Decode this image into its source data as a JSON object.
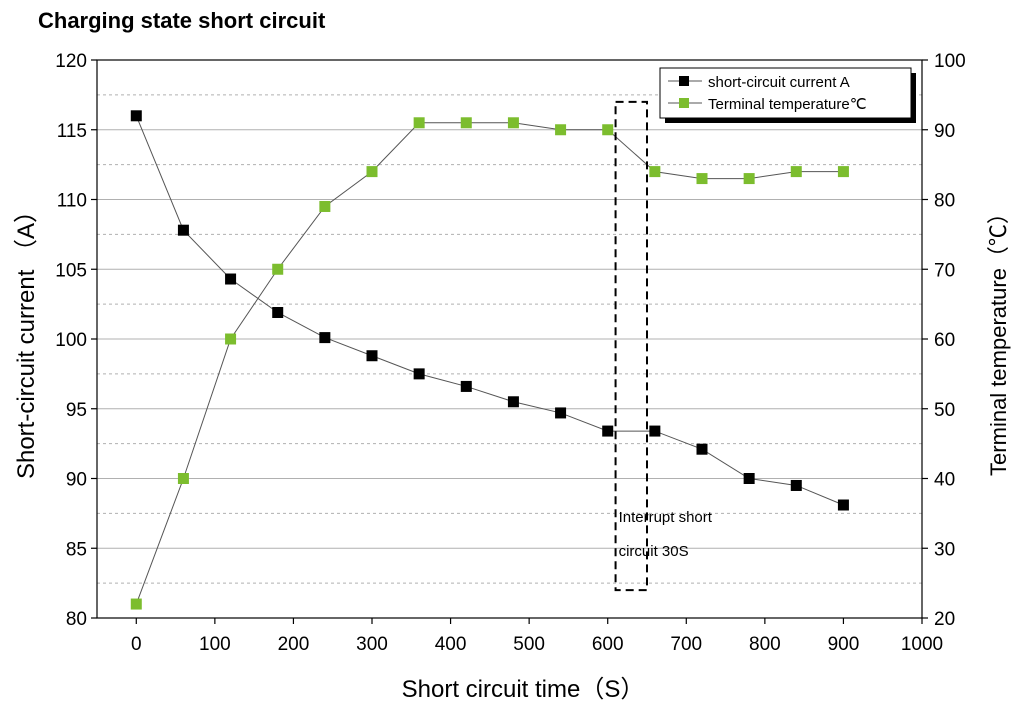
{
  "chart_data": {
    "type": "line",
    "title": "Charging state short circuit",
    "xlabel": "Short circuit time（S）",
    "ylabel_left": "Short-circuit current （A）",
    "ylabel_right": "Terminal temperature（℃）",
    "xlim": [
      -50,
      1000
    ],
    "ylim_left": [
      80,
      120
    ],
    "ylim_right": [
      20,
      100
    ],
    "x_ticks": [
      0,
      100,
      200,
      300,
      400,
      500,
      600,
      700,
      800,
      900,
      1000
    ],
    "y_left_ticks": [
      80,
      85,
      90,
      95,
      100,
      105,
      110,
      115,
      120
    ],
    "y_right_ticks": [
      20,
      30,
      40,
      50,
      60,
      70,
      80,
      90,
      100
    ],
    "grid": true,
    "legend_position": "top-right",
    "colors": {
      "current": "#000000",
      "temperature": "#7cbd2e",
      "line": "#555555",
      "grid": "#b0b0b0"
    },
    "series": [
      {
        "name": "short-circuit current A",
        "axis": "left",
        "x": [
          0,
          60,
          120,
          180,
          240,
          300,
          360,
          420,
          480,
          540,
          600,
          660,
          720,
          780,
          840,
          900
        ],
        "y": [
          116,
          107.8,
          104.3,
          101.9,
          100.1,
          98.8,
          97.5,
          96.6,
          95.5,
          94.7,
          93.4,
          93.4,
          92.1,
          90,
          89.5,
          88.1
        ]
      },
      {
        "name": "Terminal temperature℃",
        "axis": "right",
        "x": [
          0,
          60,
          120,
          180,
          240,
          300,
          360,
          420,
          480,
          540,
          600,
          660,
          720,
          780,
          840,
          900
        ],
        "y": [
          22,
          40,
          60,
          70,
          79,
          84,
          91,
          91,
          91,
          90,
          90,
          84,
          83,
          83,
          84,
          84
        ]
      }
    ],
    "annotation": {
      "lines": [
        "Interrupt short",
        "circuit 30S"
      ],
      "x_range": [
        610,
        650
      ],
      "y_range": [
        82,
        117
      ]
    }
  }
}
